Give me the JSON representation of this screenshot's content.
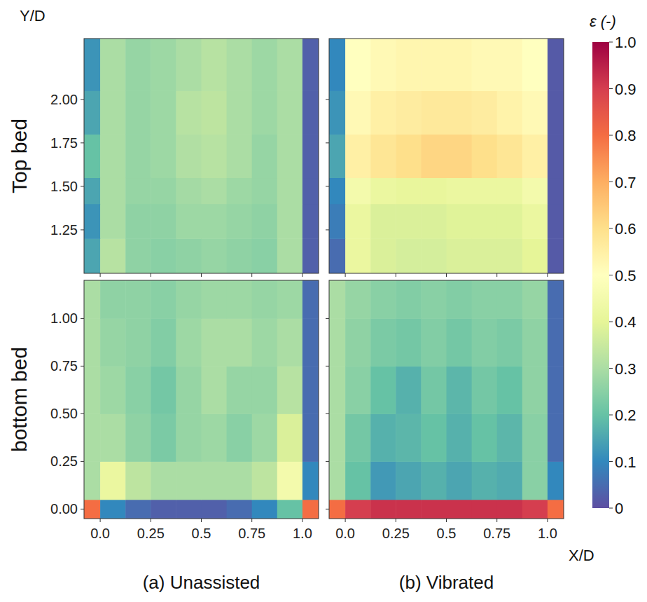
{
  "chart_data": {
    "type": "heatmap",
    "y_label": "Y/D",
    "x_label": "X/D",
    "xlim": [
      -0.08,
      1.08
    ],
    "xticks": [
      {
        "value": 0,
        "label": "0.0"
      },
      0.25,
      0.5,
      0.75,
      {
        "value": 1,
        "label": "1.0"
      }
    ],
    "x_edges": [
      -0.08,
      0,
      0.125,
      0.25,
      0.375,
      0.5,
      0.625,
      0.75,
      0.875,
      1.0,
      1.08
    ],
    "rows": [
      {
        "label": "Top bed",
        "ylim": [
          1.0,
          2.35
        ],
        "yticks": [
          1.25,
          {
            "value": 1.5,
            "label": "1.50"
          },
          1.75,
          {
            "value": 2,
            "label": "2.00"
          }
        ],
        "y_edges": [
          1.0,
          1.2,
          1.4,
          1.55,
          1.8,
          2.05,
          2.35
        ]
      },
      {
        "label": "bottom bed",
        "ylim": [
          -0.05,
          1.2
        ],
        "yticks": [
          {
            "value": 0,
            "label": "0.00"
          },
          0.25,
          {
            "value": 0.5,
            "label": "0.50"
          },
          0.75,
          {
            "value": 1,
            "label": "1.00"
          }
        ],
        "y_edges": [
          -0.05,
          0.05,
          0.25,
          0.5,
          0.75,
          1.0,
          1.2
        ]
      }
    ],
    "columns": [
      "(a) Unassisted",
      "(b) Vibrated"
    ],
    "cells": [
      [
        [
          [
            0.15,
            0.32,
            0.26,
            0.25,
            0.26,
            0.27,
            0.26,
            0.25,
            0.3,
            0.03
          ],
          [
            0.12,
            0.3,
            0.26,
            0.26,
            0.28,
            0.28,
            0.27,
            0.26,
            0.3,
            0.03
          ],
          [
            0.15,
            0.3,
            0.27,
            0.27,
            0.29,
            0.3,
            0.28,
            0.27,
            0.3,
            0.03
          ],
          [
            0.2,
            0.3,
            0.27,
            0.28,
            0.31,
            0.32,
            0.3,
            0.27,
            0.3,
            0.03
          ],
          [
            0.15,
            0.3,
            0.27,
            0.28,
            0.32,
            0.33,
            0.3,
            0.28,
            0.3,
            0.03
          ],
          [
            0.12,
            0.3,
            0.27,
            0.28,
            0.3,
            0.32,
            0.3,
            0.28,
            0.3,
            0.03
          ]
        ],
        [
          [
            0.05,
            0.42,
            0.38,
            0.37,
            0.37,
            0.38,
            0.38,
            0.38,
            0.4,
            0.02
          ],
          [
            0.08,
            0.42,
            0.38,
            0.38,
            0.38,
            0.39,
            0.39,
            0.39,
            0.42,
            0.02
          ],
          [
            0.1,
            0.45,
            0.42,
            0.41,
            0.41,
            0.42,
            0.42,
            0.42,
            0.45,
            0.02
          ],
          [
            0.15,
            0.55,
            0.58,
            0.6,
            0.62,
            0.62,
            0.6,
            0.58,
            0.55,
            0.02
          ],
          [
            0.12,
            0.52,
            0.55,
            0.56,
            0.57,
            0.57,
            0.56,
            0.54,
            0.52,
            0.02
          ],
          [
            0.1,
            0.5,
            0.52,
            0.53,
            0.53,
            0.53,
            0.52,
            0.52,
            0.5,
            0.02
          ]
        ]
      ],
      [
        [
          [
            0.8,
            0.1,
            0.05,
            0.03,
            0.03,
            0.03,
            0.05,
            0.1,
            0.2,
            0.8
          ],
          [
            0.3,
            0.42,
            0.33,
            0.3,
            0.3,
            0.3,
            0.3,
            0.33,
            0.45,
            0.1
          ],
          [
            0.3,
            0.3,
            0.26,
            0.23,
            0.27,
            0.28,
            0.25,
            0.28,
            0.38,
            0.05
          ],
          [
            0.3,
            0.28,
            0.25,
            0.22,
            0.27,
            0.3,
            0.27,
            0.27,
            0.32,
            0.05
          ],
          [
            0.3,
            0.27,
            0.26,
            0.24,
            0.28,
            0.3,
            0.3,
            0.28,
            0.3,
            0.05
          ],
          [
            0.3,
            0.26,
            0.26,
            0.25,
            0.27,
            0.28,
            0.28,
            0.27,
            0.28,
            0.05
          ]
        ],
        [
          [
            0.8,
            0.9,
            0.92,
            0.92,
            0.92,
            0.92,
            0.92,
            0.92,
            0.9,
            0.8
          ],
          [
            0.3,
            0.2,
            0.13,
            0.15,
            0.17,
            0.15,
            0.17,
            0.16,
            0.25,
            0.1
          ],
          [
            0.3,
            0.22,
            0.17,
            0.18,
            0.2,
            0.17,
            0.2,
            0.18,
            0.25,
            0.05
          ],
          [
            0.3,
            0.25,
            0.2,
            0.17,
            0.22,
            0.18,
            0.22,
            0.2,
            0.26,
            0.05
          ],
          [
            0.3,
            0.26,
            0.23,
            0.22,
            0.24,
            0.22,
            0.24,
            0.23,
            0.26,
            0.05
          ],
          [
            0.3,
            0.27,
            0.25,
            0.24,
            0.25,
            0.24,
            0.25,
            0.25,
            0.27,
            0.05
          ]
        ]
      ]
    ],
    "colorbar": {
      "label": "ε (-)",
      "range": [
        0,
        1
      ],
      "ticks": [
        0,
        0.1,
        0.2,
        0.3,
        0.4,
        0.5,
        0.6,
        0.7,
        0.8,
        0.9,
        {
          "value": 1,
          "label": "1.0"
        }
      ]
    }
  }
}
